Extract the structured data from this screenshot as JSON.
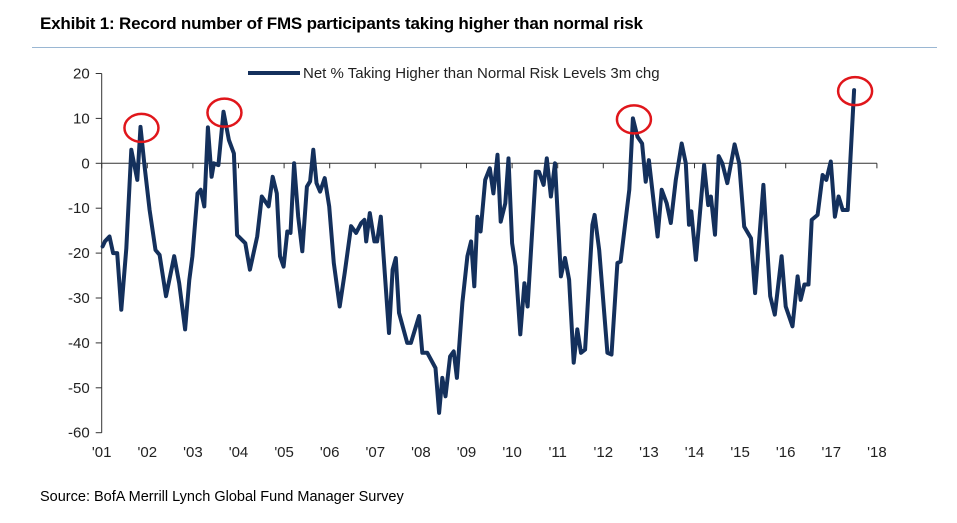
{
  "header": {
    "title": "Exhibit 1: Record number of FMS participants taking higher than normal risk"
  },
  "footer": {
    "source": "Source: BofA Merrill Lynch Global Fund Manager Survey"
  },
  "colors": {
    "series": "#14305c",
    "highlight": "#e0161b",
    "rule": "#9ab7d3",
    "axis": "#333333"
  },
  "chart_data": {
    "type": "line",
    "title": "Exhibit 1: Record number of FMS participants taking higher than normal risk",
    "xlabel": "",
    "ylabel": "",
    "ylim": [
      -60,
      20
    ],
    "xlim": [
      2001,
      2018
    ],
    "yticks": [
      "20",
      "10",
      "0",
      "-10",
      "-20",
      "-30",
      "-40",
      "-50",
      "-60"
    ],
    "ytick_values": [
      20,
      10,
      0,
      -10,
      -20,
      -30,
      -40,
      -50,
      -60
    ],
    "xticks": [
      "'01",
      "'02",
      "'03",
      "'04",
      "'05",
      "'06",
      "'07",
      "'08",
      "'09",
      "'10",
      "'11",
      "'12",
      "'13",
      "'14",
      "'15",
      "'16",
      "'17",
      "'18"
    ],
    "xtick_values": [
      2001,
      2002,
      2003,
      2004,
      2005,
      2006,
      2007,
      2008,
      2009,
      2010,
      2011,
      2012,
      2013,
      2014,
      2015,
      2016,
      2017,
      2018
    ],
    "grid": false,
    "legend": {
      "position": "top-center",
      "entries": [
        "Net % Taking Higher than Normal Risk Levels 3m chg"
      ]
    },
    "series": [
      {
        "name": "Net % Taking Higher than Normal Risk Levels 3m chg",
        "points": [
          [
            2001.02,
            -18.5
          ],
          [
            2001.07,
            -17.4
          ],
          [
            2001.17,
            -16.3
          ],
          [
            2001.25,
            -20
          ],
          [
            2001.34,
            -20
          ],
          [
            2001.43,
            -32.6
          ],
          [
            2001.54,
            -19
          ],
          [
            2001.65,
            3
          ],
          [
            2001.78,
            -3.7
          ],
          [
            2001.85,
            8.1
          ],
          [
            2001.94,
            -0.7
          ],
          [
            2002.05,
            -10.4
          ],
          [
            2002.18,
            -19.3
          ],
          [
            2002.27,
            -20.4
          ],
          [
            2002.41,
            -29.6
          ],
          [
            2002.59,
            -20.7
          ],
          [
            2002.7,
            -26.7
          ],
          [
            2002.83,
            -37
          ],
          [
            2002.92,
            -26
          ],
          [
            2002.99,
            -20.7
          ],
          [
            2003.1,
            -6.7
          ],
          [
            2003.17,
            -5.9
          ],
          [
            2003.25,
            -9.6
          ],
          [
            2003.33,
            8
          ],
          [
            2003.41,
            -3
          ],
          [
            2003.46,
            0
          ],
          [
            2003.56,
            -0.4
          ],
          [
            2003.67,
            11.5
          ],
          [
            2003.79,
            5.2
          ],
          [
            2003.9,
            2.2
          ],
          [
            2003.97,
            -16
          ],
          [
            2004.15,
            -17.8
          ],
          [
            2004.25,
            -23.7
          ],
          [
            2004.41,
            -16.3
          ],
          [
            2004.51,
            -7.4
          ],
          [
            2004.66,
            -9.6
          ],
          [
            2004.75,
            -3
          ],
          [
            2004.84,
            -6.7
          ],
          [
            2004.91,
            -20.7
          ],
          [
            2004.99,
            -23
          ],
          [
            2005.07,
            -15.2
          ],
          [
            2005.14,
            -15.5
          ],
          [
            2005.22,
            0
          ],
          [
            2005.31,
            -11.9
          ],
          [
            2005.4,
            -19.6
          ],
          [
            2005.5,
            -5.2
          ],
          [
            2005.57,
            -4
          ],
          [
            2005.64,
            3
          ],
          [
            2005.71,
            -4.4
          ],
          [
            2005.79,
            -6.3
          ],
          [
            2005.89,
            -3.3
          ],
          [
            2005.99,
            -9.6
          ],
          [
            2006.09,
            -22.2
          ],
          [
            2006.22,
            -31.9
          ],
          [
            2006.33,
            -24.4
          ],
          [
            2006.47,
            -14
          ],
          [
            2006.58,
            -15.5
          ],
          [
            2006.69,
            -13.3
          ],
          [
            2006.76,
            -12.6
          ],
          [
            2006.8,
            -17.4
          ],
          [
            2006.88,
            -11.1
          ],
          [
            2006.98,
            -17.4
          ],
          [
            2007.04,
            -17.4
          ],
          [
            2007.12,
            -11.9
          ],
          [
            2007.3,
            -37.8
          ],
          [
            2007.38,
            -23.7
          ],
          [
            2007.45,
            -21.1
          ],
          [
            2007.52,
            -33.3
          ],
          [
            2007.7,
            -40
          ],
          [
            2007.78,
            -40
          ],
          [
            2007.96,
            -34
          ],
          [
            2008.03,
            -42.2
          ],
          [
            2008.14,
            -42.2
          ],
          [
            2008.32,
            -45.6
          ],
          [
            2008.4,
            -55.6
          ],
          [
            2008.47,
            -47.8
          ],
          [
            2008.54,
            -51.9
          ],
          [
            2008.64,
            -43
          ],
          [
            2008.72,
            -41.9
          ],
          [
            2008.79,
            -47.8
          ],
          [
            2008.91,
            -31
          ],
          [
            2009.02,
            -20.7
          ],
          [
            2009.1,
            -17.4
          ],
          [
            2009.17,
            -27.4
          ],
          [
            2009.24,
            -11.9
          ],
          [
            2009.31,
            -15.2
          ],
          [
            2009.41,
            -3.7
          ],
          [
            2009.51,
            -1.1
          ],
          [
            2009.59,
            -6.7
          ],
          [
            2009.68,
            1.9
          ],
          [
            2009.75,
            -13
          ],
          [
            2009.85,
            -8.9
          ],
          [
            2009.92,
            1.1
          ],
          [
            2010.0,
            -17.8
          ],
          [
            2010.08,
            -23
          ],
          [
            2010.18,
            -38.1
          ],
          [
            2010.27,
            -26.7
          ],
          [
            2010.34,
            -31.9
          ],
          [
            2010.52,
            -1.9
          ],
          [
            2010.59,
            -1.9
          ],
          [
            2010.69,
            -4.8
          ],
          [
            2010.76,
            1.1
          ],
          [
            2010.85,
            -7.4
          ],
          [
            2010.94,
            0
          ],
          [
            2011.07,
            -25.2
          ],
          [
            2011.16,
            -21.1
          ],
          [
            2011.25,
            -25.9
          ],
          [
            2011.35,
            -44.4
          ],
          [
            2011.43,
            -37
          ],
          [
            2011.51,
            -42.2
          ],
          [
            2011.6,
            -41.5
          ],
          [
            2011.76,
            -13.7
          ],
          [
            2011.81,
            -11.5
          ],
          [
            2011.91,
            -19.3
          ],
          [
            2012.09,
            -42.2
          ],
          [
            2012.18,
            -42.6
          ],
          [
            2012.31,
            -22.2
          ],
          [
            2012.38,
            -21.9
          ],
          [
            2012.57,
            -5.9
          ],
          [
            2012.65,
            10
          ],
          [
            2012.75,
            5.9
          ],
          [
            2012.85,
            4.4
          ],
          [
            2012.93,
            -4.1
          ],
          [
            2013.0,
            0.7
          ],
          [
            2013.19,
            -16.3
          ],
          [
            2013.28,
            -5.9
          ],
          [
            2013.39,
            -8.9
          ],
          [
            2013.48,
            -13.3
          ],
          [
            2013.59,
            -3.7
          ],
          [
            2013.72,
            4.4
          ],
          [
            2013.81,
            0
          ],
          [
            2013.88,
            -13.7
          ],
          [
            2013.93,
            -10.7
          ],
          [
            2014.03,
            -21.5
          ],
          [
            2014.21,
            -0.4
          ],
          [
            2014.3,
            -9.3
          ],
          [
            2014.36,
            -7.4
          ],
          [
            2014.45,
            -15.9
          ],
          [
            2014.53,
            1.6
          ],
          [
            2014.61,
            0
          ],
          [
            2014.72,
            -4.4
          ],
          [
            2014.88,
            4.2
          ],
          [
            2014.98,
            0
          ],
          [
            2015.09,
            -14.1
          ],
          [
            2015.24,
            -16.7
          ],
          [
            2015.33,
            -28.9
          ],
          [
            2015.51,
            -4.8
          ],
          [
            2015.66,
            -29.6
          ],
          [
            2015.76,
            -33.7
          ],
          [
            2015.91,
            -20.7
          ],
          [
            2016.0,
            -31.9
          ],
          [
            2016.15,
            -36.3
          ],
          [
            2016.26,
            -25.2
          ],
          [
            2016.33,
            -30.4
          ],
          [
            2016.41,
            -27
          ],
          [
            2016.5,
            -27
          ],
          [
            2016.57,
            -12.6
          ],
          [
            2016.7,
            -11.5
          ],
          [
            2016.81,
            -2.6
          ],
          [
            2016.89,
            -3.7
          ],
          [
            2016.99,
            0.4
          ],
          [
            2017.08,
            -11.9
          ],
          [
            2017.16,
            -7.4
          ],
          [
            2017.25,
            -10.4
          ],
          [
            2017.36,
            -10.4
          ],
          [
            2017.5,
            16.3
          ]
        ]
      }
    ],
    "highlighted_points": [
      [
        2001.85,
        8.1
      ],
      [
        2003.67,
        11.5
      ],
      [
        2012.65,
        10
      ],
      [
        2017.5,
        16.3
      ]
    ]
  }
}
